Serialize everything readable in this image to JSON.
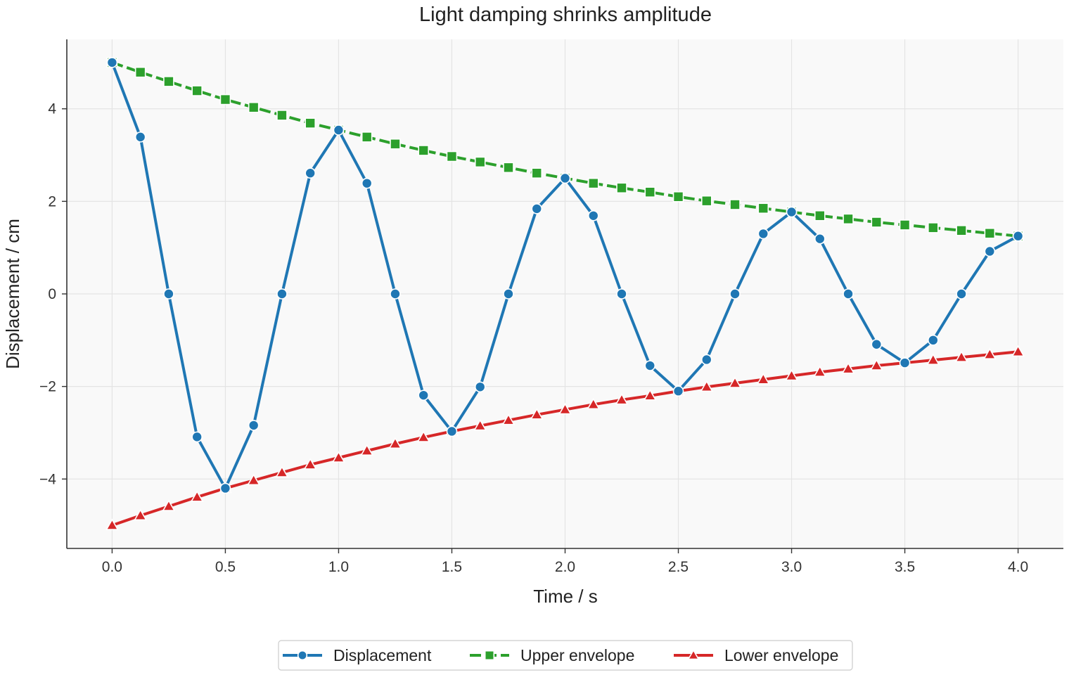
{
  "chart_data": {
    "type": "line",
    "title": "Light damping shrinks amplitude",
    "xlabel": "Time / s",
    "ylabel": "Displacement / cm",
    "xlim": [
      -0.2,
      4.2
    ],
    "ylim": [
      -5.5,
      5.5
    ],
    "xticks": [
      {
        "value": 0.0,
        "label": "0.0"
      },
      {
        "value": 0.5,
        "label": "0.5"
      },
      {
        "value": 1.0,
        "label": "1.0"
      },
      {
        "value": 1.5,
        "label": "1.5"
      },
      {
        "value": 2.0,
        "label": "2.0"
      },
      {
        "value": 2.5,
        "label": "2.5"
      },
      {
        "value": 3.0,
        "label": "3.0"
      },
      {
        "value": 3.5,
        "label": "3.5"
      },
      {
        "value": 4.0,
        "label": "4.0"
      }
    ],
    "yticks": [
      {
        "value": -4,
        "label": "−4"
      },
      {
        "value": -2,
        "label": "−2"
      },
      {
        "value": 0,
        "label": "0"
      },
      {
        "value": 2,
        "label": "2"
      },
      {
        "value": 4,
        "label": "4"
      }
    ],
    "grid": true,
    "legend_position": "bottom-center",
    "x": [
      0,
      0.125,
      0.25,
      0.375,
      0.5,
      0.625,
      0.75,
      0.875,
      1.0,
      1.125,
      1.25,
      1.375,
      1.5,
      1.625,
      1.75,
      1.875,
      2.0,
      2.125,
      2.25,
      2.375,
      2.5,
      2.625,
      2.75,
      2.875,
      3.0,
      3.125,
      3.25,
      3.375,
      3.5,
      3.625,
      3.75,
      3.875,
      4.0
    ],
    "series": [
      {
        "name": "Displacement",
        "color": "#1f77b4",
        "marker": "circle",
        "dashed": false,
        "values": [
          5.0,
          3.39,
          0,
          -3.09,
          -4.2,
          -2.84,
          0,
          2.61,
          3.54,
          2.39,
          0,
          -2.19,
          -2.97,
          -2.01,
          0,
          1.84,
          2.5,
          1.69,
          0,
          -1.55,
          -2.1,
          -1.42,
          0,
          1.3,
          1.77,
          1.19,
          0,
          -1.09,
          -1.49,
          -1.0,
          0,
          0.92,
          1.25
        ]
      },
      {
        "name": "Upper envelope",
        "color": "#2ca02c",
        "marker": "square",
        "dashed": true,
        "values": [
          5.0,
          4.79,
          4.59,
          4.39,
          4.2,
          4.03,
          3.86,
          3.69,
          3.54,
          3.39,
          3.24,
          3.1,
          2.97,
          2.85,
          2.73,
          2.61,
          2.5,
          2.39,
          2.29,
          2.2,
          2.1,
          2.01,
          1.93,
          1.85,
          1.77,
          1.69,
          1.62,
          1.55,
          1.49,
          1.43,
          1.37,
          1.31,
          1.25
        ]
      },
      {
        "name": "Lower envelope",
        "color": "#d62728",
        "marker": "triangle",
        "dashed": false,
        "values": [
          -5.0,
          -4.79,
          -4.59,
          -4.39,
          -4.2,
          -4.03,
          -3.86,
          -3.69,
          -3.54,
          -3.39,
          -3.24,
          -3.1,
          -2.97,
          -2.85,
          -2.73,
          -2.61,
          -2.5,
          -2.39,
          -2.29,
          -2.2,
          -2.1,
          -2.01,
          -1.93,
          -1.85,
          -1.77,
          -1.69,
          -1.62,
          -1.55,
          -1.49,
          -1.43,
          -1.37,
          -1.31,
          -1.25
        ]
      }
    ]
  }
}
